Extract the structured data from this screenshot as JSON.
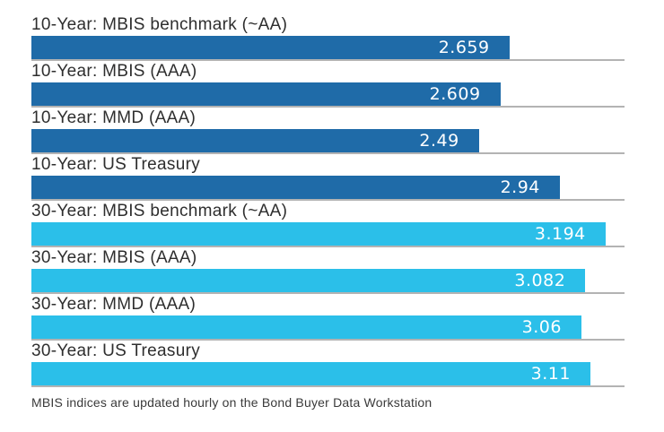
{
  "colors": {
    "ten_year_bar": "#1F6BA8",
    "thirty_year_bar": "#2BBFE9",
    "separator_line": "#B3B3B3",
    "label_text": "#2E2E2E",
    "value_text": "#FFFFFF",
    "background": "#FFFFFF"
  },
  "chart_data": {
    "type": "bar",
    "orientation": "horizontal",
    "title": "",
    "xlabel": "",
    "ylabel": "",
    "xlim": [
      0,
      3.3
    ],
    "grid": "row separator lines only, no axis labels",
    "legend_position": "none",
    "bars": [
      {
        "label": "10-Year: MBIS benchmark (~AA)",
        "value": 2.659,
        "display_value": "2.659",
        "group": "ten_year"
      },
      {
        "label": "10-Year: MBIS (AAA)",
        "value": 2.609,
        "display_value": "2.609",
        "group": "ten_year"
      },
      {
        "label": "10-Year: MMD (AAA)",
        "value": 2.49,
        "display_value": "2.49",
        "group": "ten_year"
      },
      {
        "label": "10-Year: US Treasury",
        "value": 2.94,
        "display_value": "2.94",
        "group": "ten_year"
      },
      {
        "label": "30-Year: MBIS benchmark (~AA)",
        "value": 3.194,
        "display_value": "3.194",
        "group": "thirty_year"
      },
      {
        "label": "30-Year: MBIS (AAA)",
        "value": 3.082,
        "display_value": "3.082",
        "group": "thirty_year"
      },
      {
        "label": "30-Year: MMD (AAA)",
        "value": 3.06,
        "display_value": "3.06",
        "group": "thirty_year"
      },
      {
        "label": "30-Year: US Treasury",
        "value": 3.11,
        "display_value": "3.11",
        "group": "thirty_year"
      }
    ],
    "footnote": "MBIS indices are updated hourly on the Bond Buyer Data Workstation"
  }
}
